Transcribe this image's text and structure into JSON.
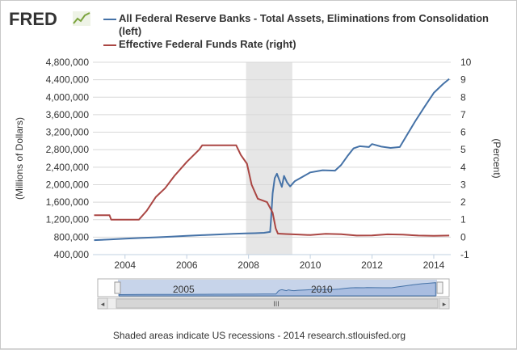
{
  "brand": {
    "logo_text": "FRED",
    "logo_icon": "fred-chart-icon"
  },
  "legend": [
    {
      "label": "All Federal Reserve Banks - Total Assets, Eliminations from Consolidation",
      "label2": "(left)",
      "color": "#4572a7"
    },
    {
      "label": "Effective Federal Funds Rate (right)",
      "color": "#aa4643"
    }
  ],
  "footer": "Shaded areas indicate US recessions - 2014 research.stlouisfed.org",
  "navigator": {
    "labels": [
      "2005",
      "2010"
    ],
    "scroll_grip": "III",
    "left_arrow": "◂",
    "right_arrow": "▸"
  },
  "chart_data": {
    "type": "line",
    "x_ticks": [
      "2004",
      "2006",
      "2008",
      "2010",
      "2012",
      "2014"
    ],
    "xlim": [
      2002.96,
      2014.55
    ],
    "recession": {
      "start": 2007.92,
      "end": 2009.42
    },
    "left_axis": {
      "label": "(Millions of Dollars)",
      "ylim": [
        400000,
        4800000
      ],
      "ticks": [
        "400,000",
        "800,000",
        "1,200,000",
        "1,600,000",
        "2,000,000",
        "2,400,000",
        "2,800,000",
        "3,200,000",
        "3,600,000",
        "4,000,000",
        "4,400,000",
        "4,800,000"
      ]
    },
    "right_axis": {
      "label": "(Percent)",
      "ylim": [
        -1,
        10
      ],
      "ticks": [
        "-1",
        "0",
        "1",
        "2",
        "3",
        "4",
        "5",
        "6",
        "7",
        "8",
        "9",
        "10"
      ]
    },
    "series": [
      {
        "name": "All Federal Reserve Banks - Total Assets, Eliminations from Consolidation",
        "axis": "left",
        "color": "#4572a7",
        "points": [
          [
            2003.0,
            730000
          ],
          [
            2003.5,
            745000
          ],
          [
            2004.0,
            765000
          ],
          [
            2004.5,
            780000
          ],
          [
            2005.0,
            795000
          ],
          [
            2005.5,
            810000
          ],
          [
            2006.0,
            830000
          ],
          [
            2006.5,
            845000
          ],
          [
            2007.0,
            860000
          ],
          [
            2007.5,
            875000
          ],
          [
            2007.9,
            885000
          ],
          [
            2008.2,
            890000
          ],
          [
            2008.5,
            900000
          ],
          [
            2008.7,
            920000
          ],
          [
            2008.73,
            1200000
          ],
          [
            2008.78,
            1800000
          ],
          [
            2008.85,
            2150000
          ],
          [
            2008.92,
            2250000
          ],
          [
            2009.0,
            2100000
          ],
          [
            2009.08,
            1950000
          ],
          [
            2009.15,
            2200000
          ],
          [
            2009.25,
            2050000
          ],
          [
            2009.35,
            1960000
          ],
          [
            2009.5,
            2080000
          ],
          [
            2009.75,
            2180000
          ],
          [
            2010.0,
            2280000
          ],
          [
            2010.4,
            2330000
          ],
          [
            2010.8,
            2320000
          ],
          [
            2011.0,
            2450000
          ],
          [
            2011.2,
            2650000
          ],
          [
            2011.4,
            2830000
          ],
          [
            2011.6,
            2880000
          ],
          [
            2011.9,
            2860000
          ],
          [
            2012.0,
            2930000
          ],
          [
            2012.3,
            2870000
          ],
          [
            2012.6,
            2840000
          ],
          [
            2012.9,
            2860000
          ],
          [
            2013.1,
            3100000
          ],
          [
            2013.4,
            3450000
          ],
          [
            2013.7,
            3780000
          ],
          [
            2014.0,
            4100000
          ],
          [
            2014.3,
            4300000
          ],
          [
            2014.5,
            4420000
          ]
        ]
      },
      {
        "name": "Effective Federal Funds Rate",
        "axis": "right",
        "color": "#aa4643",
        "points": [
          [
            2003.0,
            1.25
          ],
          [
            2003.5,
            1.25
          ],
          [
            2003.55,
            1.0
          ],
          [
            2004.0,
            1.0
          ],
          [
            2004.45,
            1.0
          ],
          [
            2004.7,
            1.5
          ],
          [
            2005.0,
            2.3
          ],
          [
            2005.3,
            2.8
          ],
          [
            2005.6,
            3.5
          ],
          [
            2006.0,
            4.3
          ],
          [
            2006.4,
            5.0
          ],
          [
            2006.5,
            5.25
          ],
          [
            2007.0,
            5.25
          ],
          [
            2007.6,
            5.25
          ],
          [
            2007.75,
            4.7
          ],
          [
            2007.95,
            4.2
          ],
          [
            2008.1,
            3.0
          ],
          [
            2008.3,
            2.2
          ],
          [
            2008.6,
            2.0
          ],
          [
            2008.78,
            1.4
          ],
          [
            2008.88,
            0.5
          ],
          [
            2008.95,
            0.2
          ],
          [
            2009.2,
            0.18
          ],
          [
            2009.6,
            0.15
          ],
          [
            2010.0,
            0.12
          ],
          [
            2010.5,
            0.19
          ],
          [
            2011.0,
            0.17
          ],
          [
            2011.5,
            0.09
          ],
          [
            2012.0,
            0.1
          ],
          [
            2012.5,
            0.16
          ],
          [
            2013.0,
            0.14
          ],
          [
            2013.5,
            0.09
          ],
          [
            2014.0,
            0.07
          ],
          [
            2014.5,
            0.09
          ]
        ]
      }
    ],
    "grid": true
  }
}
